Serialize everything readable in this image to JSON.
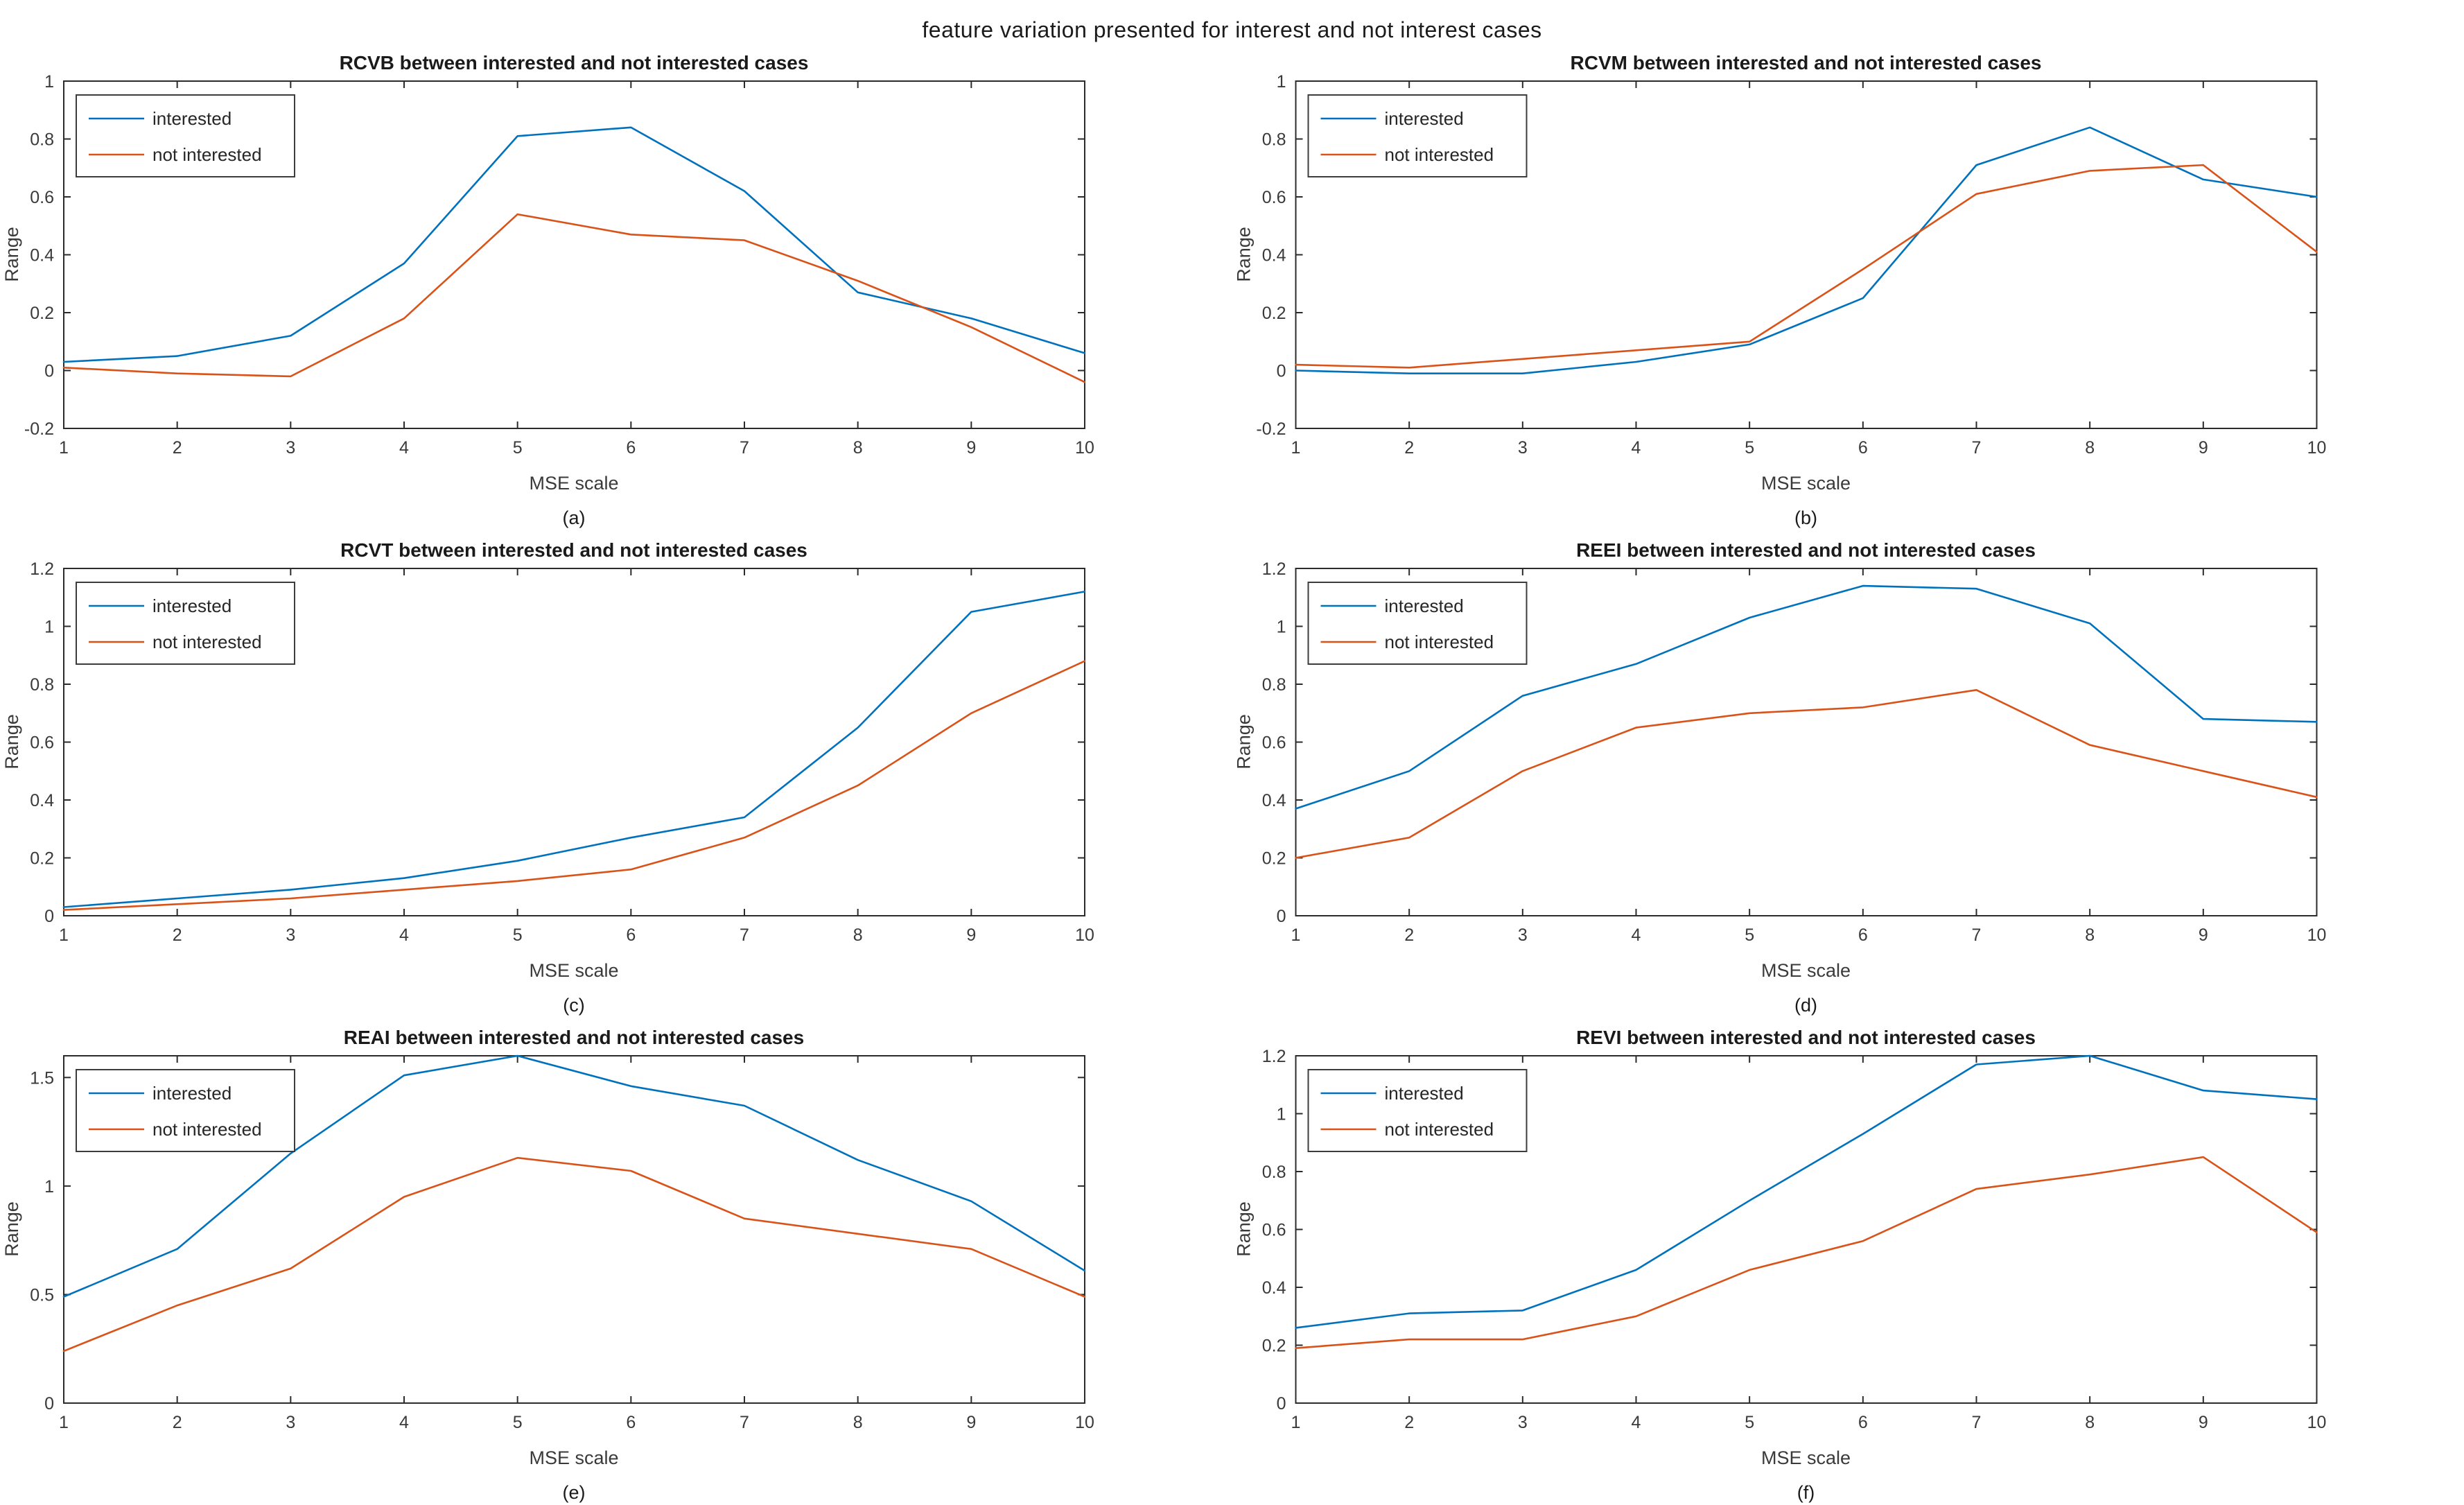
{
  "figure_title": "feature variation presented for interest and not interest cases",
  "axis_labels": {
    "x": "MSE scale",
    "y": "Range"
  },
  "legend_labels": [
    "interested",
    "not interested"
  ],
  "colors": {
    "interested": "#0072BD",
    "not_interested": "#D95319",
    "axis": "#2b2b2b",
    "text": "#262626"
  },
  "chart_data": [
    {
      "type": "line",
      "panel": "a",
      "caption": "(a)",
      "title": "RCVB between interested and not interested cases",
      "xlabel": "MSE scale",
      "ylabel": "Range",
      "x": [
        1,
        2,
        3,
        4,
        5,
        6,
        7,
        8,
        9,
        10
      ],
      "xlim": [
        1,
        10
      ],
      "ylim": [
        -0.2,
        1
      ],
      "xticks": [
        "1",
        "2",
        "3",
        "4",
        "5",
        "6",
        "7",
        "8",
        "9",
        "10"
      ],
      "yticks": [
        "-0.2",
        "0",
        "0.2",
        "0.4",
        "0.6",
        "0.8",
        "1"
      ],
      "grid": false,
      "legend_position": "top-left",
      "series": [
        {
          "name": "interested",
          "color": "#0072BD",
          "values": [
            0.03,
            0.05,
            0.12,
            0.37,
            0.81,
            0.84,
            0.62,
            0.27,
            0.18,
            0.06
          ]
        },
        {
          "name": "not interested",
          "color": "#D95319",
          "values": [
            0.01,
            -0.01,
            -0.02,
            0.18,
            0.54,
            0.47,
            0.45,
            0.31,
            0.15,
            -0.04
          ]
        }
      ]
    },
    {
      "type": "line",
      "panel": "b",
      "caption": "(b)",
      "title": "RCVM between interested and not interested cases",
      "xlabel": "MSE scale",
      "ylabel": "Range",
      "x": [
        1,
        2,
        3,
        4,
        5,
        6,
        7,
        8,
        9,
        10
      ],
      "xlim": [
        1,
        10
      ],
      "ylim": [
        -0.2,
        1
      ],
      "xticks": [
        "1",
        "2",
        "3",
        "4",
        "5",
        "6",
        "7",
        "8",
        "9",
        "10"
      ],
      "yticks": [
        "-0.2",
        "0",
        "0.2",
        "0.4",
        "0.6",
        "0.8",
        "1"
      ],
      "grid": false,
      "legend_position": "top-left",
      "series": [
        {
          "name": "interested",
          "color": "#0072BD",
          "values": [
            0.0,
            -0.01,
            -0.01,
            0.03,
            0.09,
            0.25,
            0.71,
            0.84,
            0.66,
            0.6
          ]
        },
        {
          "name": "not interested",
          "color": "#D95319",
          "values": [
            0.02,
            0.01,
            0.04,
            0.07,
            0.1,
            0.35,
            0.61,
            0.69,
            0.71,
            0.41
          ]
        }
      ]
    },
    {
      "type": "line",
      "panel": "c",
      "caption": "(c)",
      "title": "RCVT between interested and not interested cases",
      "xlabel": "MSE scale",
      "ylabel": "Range",
      "x": [
        1,
        2,
        3,
        4,
        5,
        6,
        7,
        8,
        9,
        10
      ],
      "xlim": [
        1,
        10
      ],
      "ylim": [
        0,
        1.2
      ],
      "xticks": [
        "1",
        "2",
        "3",
        "4",
        "5",
        "6",
        "7",
        "8",
        "9",
        "10"
      ],
      "yticks": [
        "0",
        "0.2",
        "0.4",
        "0.6",
        "0.8",
        "1",
        "1.2"
      ],
      "grid": false,
      "legend_position": "top-left",
      "series": [
        {
          "name": "interested",
          "color": "#0072BD",
          "values": [
            0.03,
            0.06,
            0.09,
            0.13,
            0.19,
            0.27,
            0.34,
            0.65,
            1.05,
            1.12
          ]
        },
        {
          "name": "not interested",
          "color": "#D95319",
          "values": [
            0.02,
            0.04,
            0.06,
            0.09,
            0.12,
            0.16,
            0.27,
            0.45,
            0.7,
            0.88
          ]
        }
      ]
    },
    {
      "type": "line",
      "panel": "d",
      "caption": "(d)",
      "title": "REEI between interested and not interested cases",
      "xlabel": "MSE scale",
      "ylabel": "Range",
      "x": [
        1,
        2,
        3,
        4,
        5,
        6,
        7,
        8,
        9,
        10
      ],
      "xlim": [
        1,
        10
      ],
      "ylim": [
        0,
        1.2
      ],
      "xticks": [
        "1",
        "2",
        "3",
        "4",
        "5",
        "6",
        "7",
        "8",
        "9",
        "10"
      ],
      "yticks": [
        "0",
        "0.2",
        "0.4",
        "0.6",
        "0.8",
        "1",
        "1.2"
      ],
      "grid": false,
      "legend_position": "top-left",
      "series": [
        {
          "name": "interested",
          "color": "#0072BD",
          "values": [
            0.37,
            0.5,
            0.76,
            0.87,
            1.03,
            1.14,
            1.13,
            1.01,
            0.68,
            0.67
          ]
        },
        {
          "name": "not interested",
          "color": "#D95319",
          "values": [
            0.2,
            0.27,
            0.5,
            0.65,
            0.7,
            0.72,
            0.78,
            0.59,
            0.5,
            0.41
          ]
        }
      ]
    },
    {
      "type": "line",
      "panel": "e",
      "caption": "(e)",
      "title": "REAI between interested and not interested cases",
      "xlabel": "MSE scale",
      "ylabel": "Range",
      "x": [
        1,
        2,
        3,
        4,
        5,
        6,
        7,
        8,
        9,
        10
      ],
      "xlim": [
        1,
        10
      ],
      "ylim": [
        0,
        1.6
      ],
      "xticks": [
        "1",
        "2",
        "3",
        "4",
        "5",
        "6",
        "7",
        "8",
        "9",
        "10"
      ],
      "yticks": [
        "0",
        "0.5",
        "1",
        "1.5"
      ],
      "grid": false,
      "legend_position": "top-left",
      "series": [
        {
          "name": "interested",
          "color": "#0072BD",
          "values": [
            0.49,
            0.71,
            1.15,
            1.51,
            1.6,
            1.46,
            1.37,
            1.12,
            0.93,
            0.61
          ]
        },
        {
          "name": "not interested",
          "color": "#D95319",
          "values": [
            0.24,
            0.45,
            0.62,
            0.95,
            1.13,
            1.07,
            0.85,
            0.78,
            0.71,
            0.49
          ]
        }
      ]
    },
    {
      "type": "line",
      "panel": "f",
      "caption": "(f)",
      "title": "REVI between interested and not interested cases",
      "xlabel": "MSE scale",
      "ylabel": "Range",
      "x": [
        1,
        2,
        3,
        4,
        5,
        6,
        7,
        8,
        9,
        10
      ],
      "xlim": [
        1,
        10
      ],
      "ylim": [
        0,
        1.2
      ],
      "xticks": [
        "1",
        "2",
        "3",
        "4",
        "5",
        "6",
        "7",
        "8",
        "9",
        "10"
      ],
      "yticks": [
        "0",
        "0.2",
        "0.4",
        "0.6",
        "0.8",
        "1",
        "1.2"
      ],
      "grid": false,
      "legend_position": "top-left",
      "series": [
        {
          "name": "interested",
          "color": "#0072BD",
          "values": [
            0.26,
            0.31,
            0.32,
            0.46,
            0.7,
            0.93,
            1.17,
            1.2,
            1.08,
            1.05
          ]
        },
        {
          "name": "not interested",
          "color": "#D95319",
          "values": [
            0.19,
            0.22,
            0.22,
            0.3,
            0.46,
            0.56,
            0.74,
            0.79,
            0.85,
            0.59
          ]
        }
      ]
    }
  ]
}
